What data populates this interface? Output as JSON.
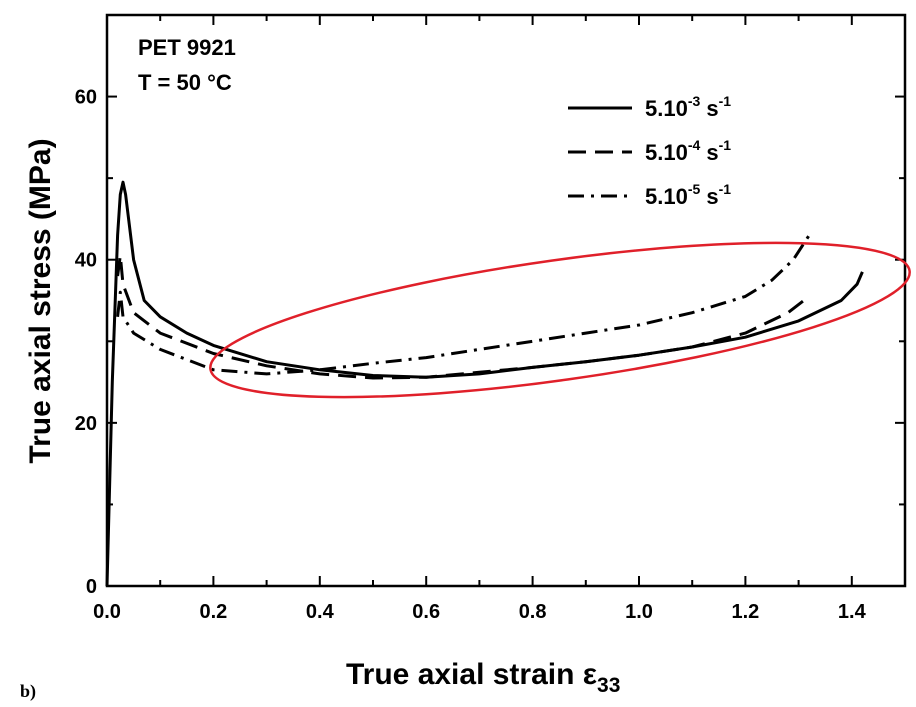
{
  "chart_data": {
    "type": "line",
    "panel_label": "b)",
    "xlabel": "True axial strain ε",
    "xlabel_sub": "33",
    "ylabel": "True axial stress (MPa)",
    "xlim": [
      0,
      1.5
    ],
    "ylim": [
      0,
      70
    ],
    "x_ticks": [
      "0.0",
      "0.2",
      "0.4",
      "0.6",
      "0.8",
      "1.0",
      "1.2",
      "1.4"
    ],
    "y_ticks": [
      "0",
      "20",
      "40",
      "60"
    ],
    "annotation_lines": [
      "PET 9921",
      "T = 50 °C"
    ],
    "legend_position": "top-right",
    "series": [
      {
        "name": "5.10-3 s-1",
        "name_base": "5.10",
        "name_exp": "-3",
        "name_unit": " s",
        "name_unit_exp": "-1",
        "dash": "solid",
        "points": [
          [
            0,
            0
          ],
          [
            0.01,
            25
          ],
          [
            0.02,
            43
          ],
          [
            0.025,
            48
          ],
          [
            0.03,
            49.5
          ],
          [
            0.035,
            48
          ],
          [
            0.05,
            40
          ],
          [
            0.07,
            35
          ],
          [
            0.1,
            33
          ],
          [
            0.15,
            31
          ],
          [
            0.2,
            29.5
          ],
          [
            0.3,
            27.5
          ],
          [
            0.4,
            26.5
          ],
          [
            0.5,
            25.8
          ],
          [
            0.6,
            25.6
          ],
          [
            0.7,
            26
          ],
          [
            0.8,
            26.8
          ],
          [
            0.9,
            27.5
          ],
          [
            1.0,
            28.3
          ],
          [
            1.1,
            29.3
          ],
          [
            1.2,
            30.5
          ],
          [
            1.3,
            32.5
          ],
          [
            1.38,
            35
          ],
          [
            1.41,
            37
          ],
          [
            1.42,
            38.5
          ]
        ]
      },
      {
        "name": "5.10-4 s-1",
        "name_base": "5.10",
        "name_exp": "-4",
        "name_unit": " s",
        "name_unit_exp": "-1",
        "dash": "dash",
        "points": [
          [
            0.02,
            38
          ],
          [
            0.025,
            40.5
          ],
          [
            0.03,
            37
          ],
          [
            0.05,
            33.5
          ],
          [
            0.1,
            31
          ],
          [
            0.2,
            28.5
          ],
          [
            0.3,
            27
          ],
          [
            0.4,
            26
          ],
          [
            0.5,
            25.5
          ],
          [
            0.6,
            25.6
          ],
          [
            0.7,
            26.2
          ],
          [
            0.8,
            26.8
          ],
          [
            0.9,
            27.5
          ],
          [
            1.0,
            28.3
          ],
          [
            1.1,
            29.3
          ],
          [
            1.2,
            31
          ],
          [
            1.28,
            33.5
          ],
          [
            1.32,
            35.5
          ]
        ]
      },
      {
        "name": "5.10-5 s-1",
        "name_base": "5.10",
        "name_exp": "-5",
        "name_unit": " s",
        "name_unit_exp": "-1",
        "dash": "dashdot",
        "points": [
          [
            0.02,
            33
          ],
          [
            0.025,
            36
          ],
          [
            0.03,
            33
          ],
          [
            0.05,
            31
          ],
          [
            0.1,
            29
          ],
          [
            0.2,
            26.5
          ],
          [
            0.3,
            26
          ],
          [
            0.4,
            26.5
          ],
          [
            0.5,
            27.3
          ],
          [
            0.6,
            28
          ],
          [
            0.7,
            29
          ],
          [
            0.8,
            30
          ],
          [
            0.9,
            31
          ],
          [
            1.0,
            32
          ],
          [
            1.1,
            33.5
          ],
          [
            1.2,
            35.5
          ],
          [
            1.25,
            37.5
          ],
          [
            1.29,
            40
          ],
          [
            1.31,
            42
          ],
          [
            1.32,
            43
          ]
        ]
      }
    ],
    "highlight": {
      "shape": "ellipse",
      "color": "#e0202a"
    }
  }
}
